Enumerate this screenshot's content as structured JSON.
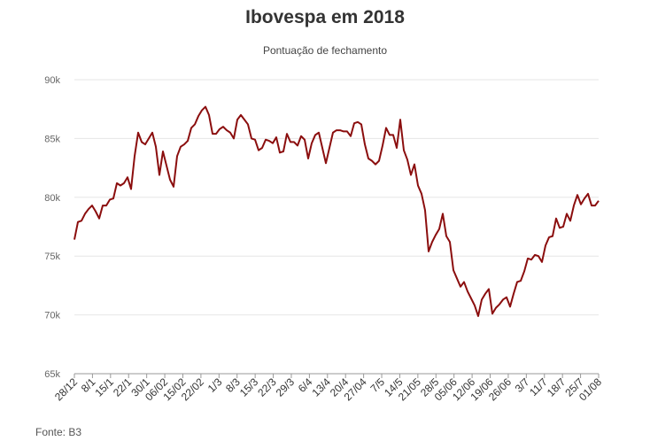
{
  "chart_data": {
    "type": "line",
    "title": "Ibovespa em 2018",
    "subtitle": "Pontuação de fechamento",
    "source": "Fonte: B3",
    "xlabel": "",
    "ylabel": "",
    "ylim": [
      65000,
      90000
    ],
    "yticks": [
      65000,
      70000,
      75000,
      80000,
      85000,
      90000
    ],
    "ytick_labels": [
      "65k",
      "70k",
      "75k",
      "80k",
      "85k",
      "90k"
    ],
    "xtick_labels": [
      "28/12",
      "8/1",
      "15/1",
      "22/1",
      "30/1",
      "06/02",
      "15/02",
      "22/02",
      "1/3",
      "8/3",
      "15/3",
      "22/3",
      "29/3",
      "6/4",
      "13/4",
      "20/4",
      "27/04",
      "7/5",
      "14/5",
      "21/05",
      "28/5",
      "05/06",
      "12/06",
      "19/06",
      "26/06",
      "3/7",
      "11/7",
      "18/7",
      "25/7",
      "01/08"
    ],
    "grid": true,
    "legend": "none",
    "line_color": "#8b0e0e",
    "series": [
      {
        "values": [
          76400,
          77900,
          78000,
          78600,
          79000,
          79300,
          78800,
          78200,
          79300,
          79300,
          79800,
          79900,
          81200,
          81000,
          81200,
          81700,
          80700,
          83500,
          85500,
          84700,
          84500,
          85000,
          85500,
          84300,
          81900,
          83900,
          82700,
          81500,
          80900,
          83500,
          84300,
          84500,
          84800,
          85900,
          86200,
          86900,
          87400,
          87700,
          87000,
          85400,
          85400,
          85800,
          86000,
          85700,
          85500,
          85000,
          86600,
          87000,
          86600,
          86200,
          85000,
          84900,
          84000,
          84200,
          84900,
          84800,
          84600,
          85100,
          83800,
          83900,
          85400,
          84700,
          84700,
          84400,
          85200,
          84900,
          83300,
          84600,
          85300,
          85500,
          84200,
          82900,
          84200,
          85500,
          85700,
          85700,
          85600,
          85600,
          85200,
          86300,
          86400,
          86200,
          84500,
          83300,
          83100,
          82800,
          83100,
          84400,
          85900,
          85300,
          85300,
          84200,
          86600,
          84000,
          83200,
          81900,
          82800,
          81000,
          80300,
          78900,
          75400,
          76200,
          76800,
          77300,
          78600,
          76700,
          76200,
          73800,
          73100,
          72400,
          72800,
          72000,
          71400,
          70800,
          69900,
          71300,
          71800,
          72200,
          70100,
          70600,
          70900,
          71300,
          71500,
          70700,
          71800,
          72800,
          72900,
          73700,
          74800,
          74700,
          75100,
          75000,
          74500,
          75900,
          76600,
          76700,
          78200,
          77400,
          77500,
          78600,
          78000,
          79300,
          80200,
          79400,
          79900,
          80300,
          79300,
          79300,
          79700
        ]
      }
    ]
  }
}
